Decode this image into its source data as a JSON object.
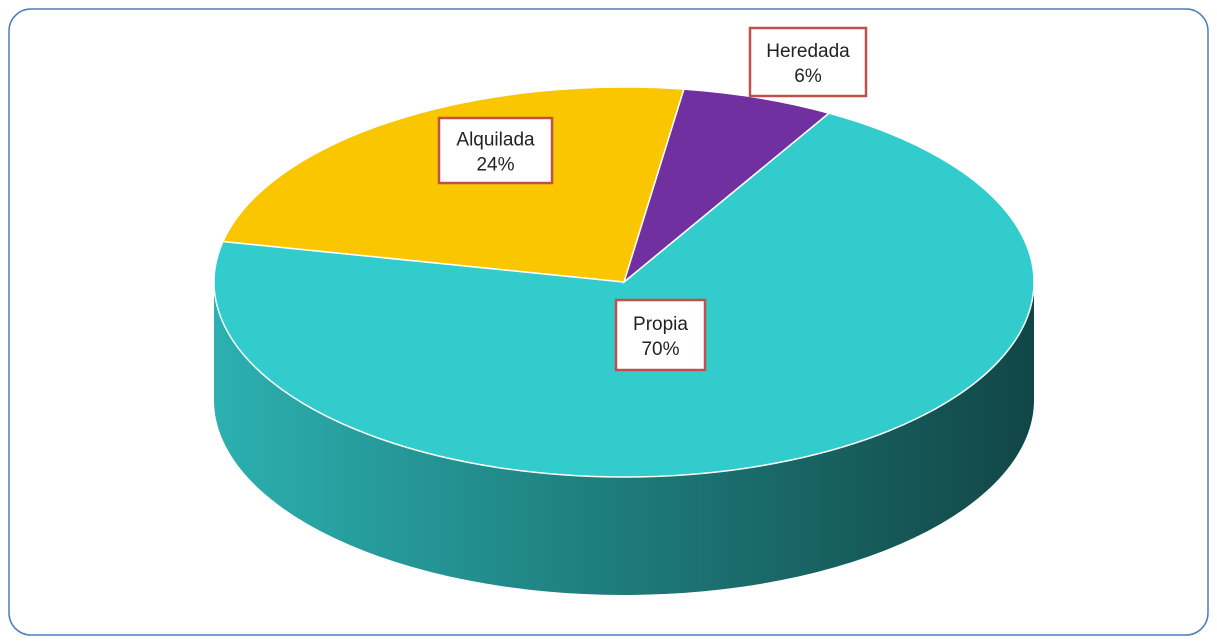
{
  "chart_data": {
    "type": "pie",
    "categories": [
      "Propia",
      "Alquilada",
      "Heredada"
    ],
    "values": [
      70,
      24,
      6
    ],
    "value_labels": [
      "70%",
      "24%",
      "6%"
    ],
    "colors": [
      "#33cccc",
      "#f9c600",
      "#7030a0"
    ]
  }
}
